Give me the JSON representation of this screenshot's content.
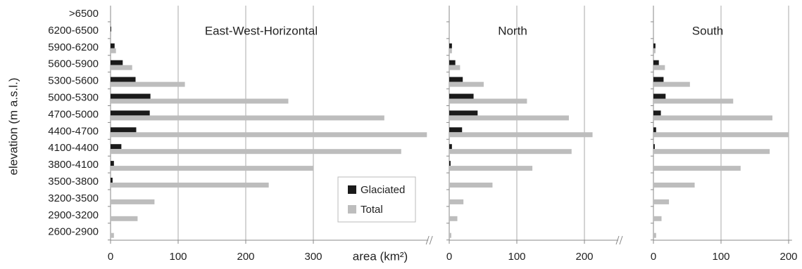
{
  "chart_data": {
    "type": "bar",
    "orientation": "horizontal",
    "ylabel": "elevation (m a.s.l.)",
    "xlabel": "area (km²)",
    "categories": [
      ">6500",
      "6200-6500",
      "5900-6200",
      "5600-5900",
      "5300-5600",
      "5000-5300",
      "4700-5000",
      "4400-4700",
      "4100-4400",
      "3800-4100",
      "3500-3800",
      "3200-3500",
      "2900-3200",
      "2600-2900"
    ],
    "series": [
      {
        "name": "Glaciated",
        "color": "#1a1a1a"
      },
      {
        "name": "Total",
        "color": "#bdbdbd"
      }
    ],
    "grid": true,
    "panels": [
      {
        "title": "East-West-Horizontal",
        "xlim": [
          0,
          470
        ],
        "xticks": [
          0,
          100,
          200,
          300
        ],
        "values": [
          [
            0,
            1,
            6,
            18,
            37,
            59,
            58,
            38,
            16,
            5,
            3,
            0,
            0,
            0
          ],
          [
            0,
            1,
            8,
            32,
            110,
            263,
            405,
            468,
            430,
            300,
            234,
            65,
            40,
            5
          ]
        ]
      },
      {
        "title": "North",
        "xlim": [
          0,
          250
        ],
        "xticks": [
          0,
          100,
          200
        ],
        "values": [
          [
            0,
            0,
            4,
            9,
            20,
            36,
            42,
            19,
            4,
            2,
            0,
            0,
            0,
            0
          ],
          [
            0,
            0,
            4,
            16,
            51,
            115,
            177,
            212,
            181,
            123,
            64,
            21,
            12,
            3
          ]
        ]
      },
      {
        "title": "South",
        "xlim": [
          0,
          205
        ],
        "xticks": [
          0,
          100,
          200
        ],
        "values": [
          [
            0,
            0,
            3,
            8,
            15,
            18,
            11,
            4,
            2,
            0,
            0,
            0,
            0,
            0
          ],
          [
            0,
            0,
            3,
            17,
            54,
            118,
            176,
            200,
            172,
            129,
            61,
            23,
            12,
            4
          ]
        ]
      }
    ]
  }
}
